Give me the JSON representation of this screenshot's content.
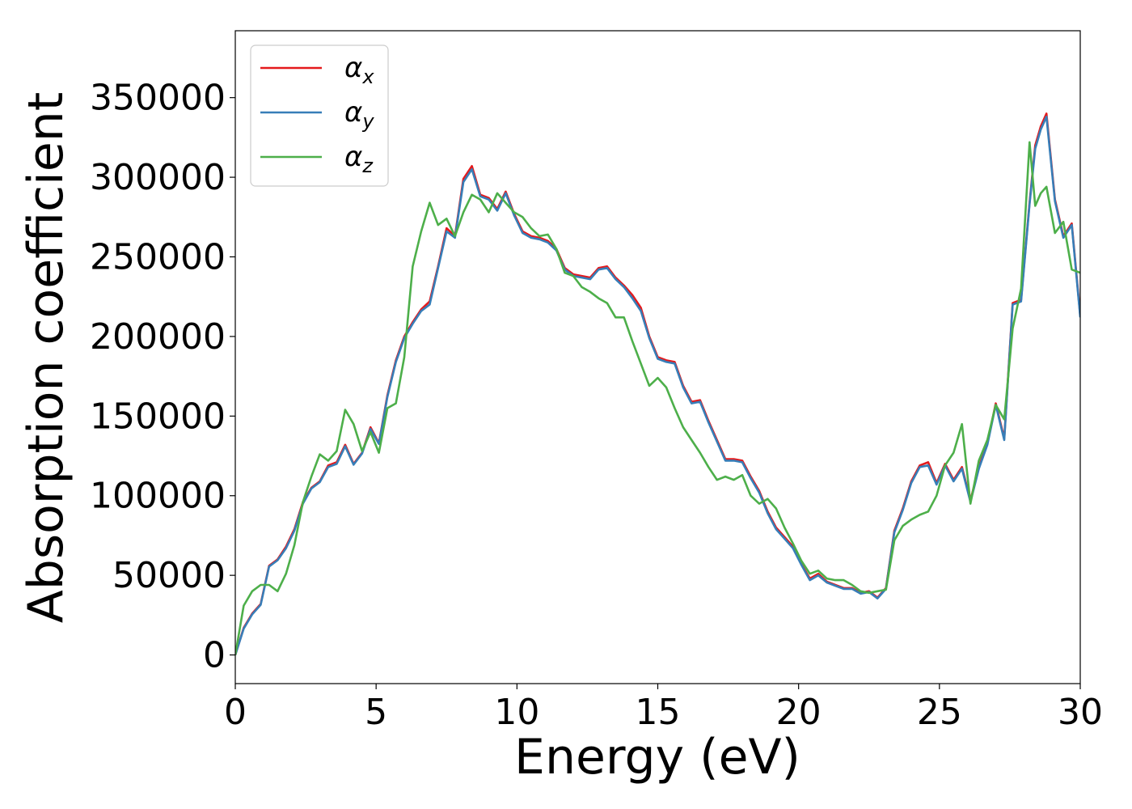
{
  "chart_data": {
    "type": "line",
    "xlabel": "Energy (eV)",
    "ylabel": "Absorption coefficient",
    "xlim": [
      0,
      30
    ],
    "ylim": [
      -18000,
      392000
    ],
    "xticks": [
      0,
      5,
      10,
      15,
      20,
      25,
      30
    ],
    "yticks": [
      0,
      50000,
      100000,
      150000,
      200000,
      250000,
      300000,
      350000
    ],
    "grid": false,
    "legend_position": "top-left",
    "series": [
      {
        "name": "α_x",
        "symbol": "α",
        "subscript": "x",
        "color": "#e41a1c",
        "x": [
          0,
          0.3,
          0.6,
          0.9,
          1.2,
          1.5,
          1.8,
          2.1,
          2.4,
          2.7,
          3.0,
          3.3,
          3.6,
          3.9,
          4.2,
          4.5,
          4.8,
          5.1,
          5.4,
          5.7,
          6.0,
          6.3,
          6.6,
          6.9,
          7.2,
          7.5,
          7.8,
          8.1,
          8.4,
          8.7,
          9.0,
          9.3,
          9.6,
          9.9,
          10.2,
          10.5,
          10.8,
          11.1,
          11.4,
          11.7,
          12.0,
          12.3,
          12.6,
          12.9,
          13.2,
          13.5,
          13.8,
          14.1,
          14.4,
          14.7,
          15.0,
          15.3,
          15.6,
          15.9,
          16.2,
          16.5,
          16.8,
          17.1,
          17.4,
          17.7,
          18.0,
          18.3,
          18.6,
          18.9,
          19.2,
          19.5,
          19.8,
          20.1,
          20.4,
          20.7,
          21.0,
          21.3,
          21.6,
          21.9,
          22.2,
          22.5,
          22.8,
          23.1,
          23.4,
          23.7,
          24.0,
          24.3,
          24.6,
          24.9,
          25.2,
          25.5,
          25.8,
          26.1,
          26.4,
          26.7,
          27.0,
          27.3,
          27.6,
          27.9,
          28.2,
          28.4,
          28.6,
          28.8,
          29.1,
          29.4,
          29.7,
          30.0
        ],
        "y": [
          0,
          17000,
          26000,
          32000,
          56000,
          60000,
          68000,
          79000,
          96000,
          105000,
          109000,
          119000,
          121000,
          132000,
          120000,
          127000,
          143000,
          133000,
          163000,
          185000,
          200000,
          209000,
          217000,
          222000,
          244000,
          268000,
          263000,
          299000,
          307000,
          289000,
          287000,
          280000,
          291000,
          277000,
          266000,
          263000,
          262000,
          260000,
          255000,
          243000,
          239000,
          238000,
          237000,
          243000,
          244000,
          237000,
          232000,
          226000,
          218000,
          200000,
          187000,
          185000,
          184000,
          169000,
          159000,
          160000,
          147000,
          135000,
          123000,
          123000,
          122000,
          112000,
          103000,
          90000,
          80000,
          74000,
          68000,
          57000,
          48000,
          51000,
          46000,
          44000,
          42000,
          42000,
          39000,
          40000,
          36000,
          42000,
          78000,
          92000,
          109000,
          119000,
          121000,
          108000,
          120000,
          110000,
          118000,
          97000,
          118000,
          133000,
          158000,
          136000,
          221000,
          223000,
          284000,
          320000,
          332000,
          340000,
          286000,
          263000,
          271000,
          213000
        ]
      },
      {
        "name": "α_y",
        "symbol": "α",
        "subscript": "y",
        "color": "#377eb8",
        "x": [
          0,
          0.3,
          0.6,
          0.9,
          1.2,
          1.5,
          1.8,
          2.1,
          2.4,
          2.7,
          3.0,
          3.3,
          3.6,
          3.9,
          4.2,
          4.5,
          4.8,
          5.1,
          5.4,
          5.7,
          6.0,
          6.3,
          6.6,
          6.9,
          7.2,
          7.5,
          7.8,
          8.1,
          8.4,
          8.7,
          9.0,
          9.3,
          9.6,
          9.9,
          10.2,
          10.5,
          10.8,
          11.1,
          11.4,
          11.7,
          12.0,
          12.3,
          12.6,
          12.9,
          13.2,
          13.5,
          13.8,
          14.1,
          14.4,
          14.7,
          15.0,
          15.3,
          15.6,
          15.9,
          16.2,
          16.5,
          16.8,
          17.1,
          17.4,
          17.7,
          18.0,
          18.3,
          18.6,
          18.9,
          19.2,
          19.5,
          19.8,
          20.1,
          20.4,
          20.7,
          21.0,
          21.3,
          21.6,
          21.9,
          22.2,
          22.5,
          22.8,
          23.1,
          23.4,
          23.7,
          24.0,
          24.3,
          24.6,
          24.9,
          25.2,
          25.5,
          25.8,
          26.1,
          26.4,
          26.7,
          27.0,
          27.3,
          27.6,
          27.9,
          28.2,
          28.4,
          28.6,
          28.8,
          29.1,
          29.4,
          29.7,
          30.0
        ],
        "y": [
          0,
          16500,
          25500,
          31500,
          55500,
          59500,
          67000,
          78000,
          95000,
          104500,
          108500,
          118000,
          120000,
          131000,
          119500,
          126500,
          142000,
          132500,
          162000,
          184000,
          199000,
          208000,
          216000,
          220000,
          243000,
          266000,
          262000,
          297000,
          305000,
          288000,
          286000,
          279000,
          290000,
          276000,
          265000,
          262000,
          261000,
          259000,
          254000,
          242000,
          238000,
          237000,
          236000,
          242000,
          243000,
          236000,
          231000,
          224000,
          216000,
          199000,
          186000,
          184000,
          183000,
          168000,
          158000,
          159000,
          146000,
          134000,
          122000,
          122000,
          121000,
          111000,
          102000,
          89000,
          79000,
          73000,
          67000,
          56500,
          47000,
          50000,
          45500,
          43500,
          41500,
          41500,
          38500,
          39500,
          35500,
          41500,
          77000,
          91000,
          108000,
          118000,
          119000,
          107000,
          119000,
          109000,
          117000,
          96000,
          117000,
          132000,
          157000,
          135000,
          220000,
          222000,
          283000,
          318000,
          330000,
          338000,
          285000,
          262000,
          270000,
          212000
        ]
      },
      {
        "name": "α_z",
        "symbol": "α",
        "subscript": "z",
        "color": "#4daf4a",
        "x": [
          0,
          0.3,
          0.6,
          0.9,
          1.2,
          1.5,
          1.8,
          2.1,
          2.4,
          2.7,
          3.0,
          3.3,
          3.6,
          3.9,
          4.2,
          4.5,
          4.8,
          5.1,
          5.4,
          5.7,
          6.0,
          6.3,
          6.6,
          6.9,
          7.2,
          7.5,
          7.8,
          8.1,
          8.4,
          8.7,
          9.0,
          9.3,
          9.6,
          9.9,
          10.2,
          10.5,
          10.8,
          11.1,
          11.4,
          11.7,
          12.0,
          12.3,
          12.6,
          12.9,
          13.2,
          13.5,
          13.8,
          14.1,
          14.4,
          14.7,
          15.0,
          15.3,
          15.6,
          15.9,
          16.2,
          16.5,
          16.8,
          17.1,
          17.4,
          17.7,
          18.0,
          18.3,
          18.6,
          18.9,
          19.2,
          19.5,
          19.8,
          20.1,
          20.4,
          20.7,
          21.0,
          21.3,
          21.6,
          21.9,
          22.2,
          22.5,
          22.8,
          23.1,
          23.4,
          23.7,
          24.0,
          24.3,
          24.6,
          24.9,
          25.2,
          25.5,
          25.8,
          26.1,
          26.4,
          26.7,
          27.0,
          27.3,
          27.6,
          27.9,
          28.2,
          28.4,
          28.6,
          28.8,
          29.1,
          29.4,
          29.7,
          30.0
        ],
        "y": [
          0,
          31000,
          40000,
          44000,
          44000,
          40000,
          51000,
          69000,
          96000,
          112000,
          126000,
          122000,
          128000,
          154000,
          145000,
          128000,
          140000,
          127000,
          155000,
          158000,
          187000,
          244000,
          266000,
          284000,
          270000,
          274000,
          263000,
          278000,
          289000,
          286000,
          278000,
          290000,
          284000,
          278000,
          275000,
          268000,
          263000,
          264000,
          255000,
          240000,
          238000,
          231000,
          228000,
          224000,
          221000,
          212000,
          212000,
          197000,
          183000,
          169000,
          174000,
          168000,
          155000,
          143000,
          135000,
          127000,
          118000,
          110000,
          112000,
          110000,
          113000,
          100000,
          95000,
          98000,
          92000,
          80000,
          70000,
          59000,
          51000,
          53000,
          48000,
          47000,
          47000,
          44000,
          40000,
          39000,
          40000,
          41000,
          72000,
          81000,
          85000,
          88000,
          90000,
          100000,
          119000,
          127000,
          145000,
          95000,
          122000,
          135000,
          157000,
          148000,
          205000,
          230000,
          322000,
          282000,
          290000,
          294000,
          265000,
          272000,
          242000,
          240000
        ]
      }
    ]
  }
}
